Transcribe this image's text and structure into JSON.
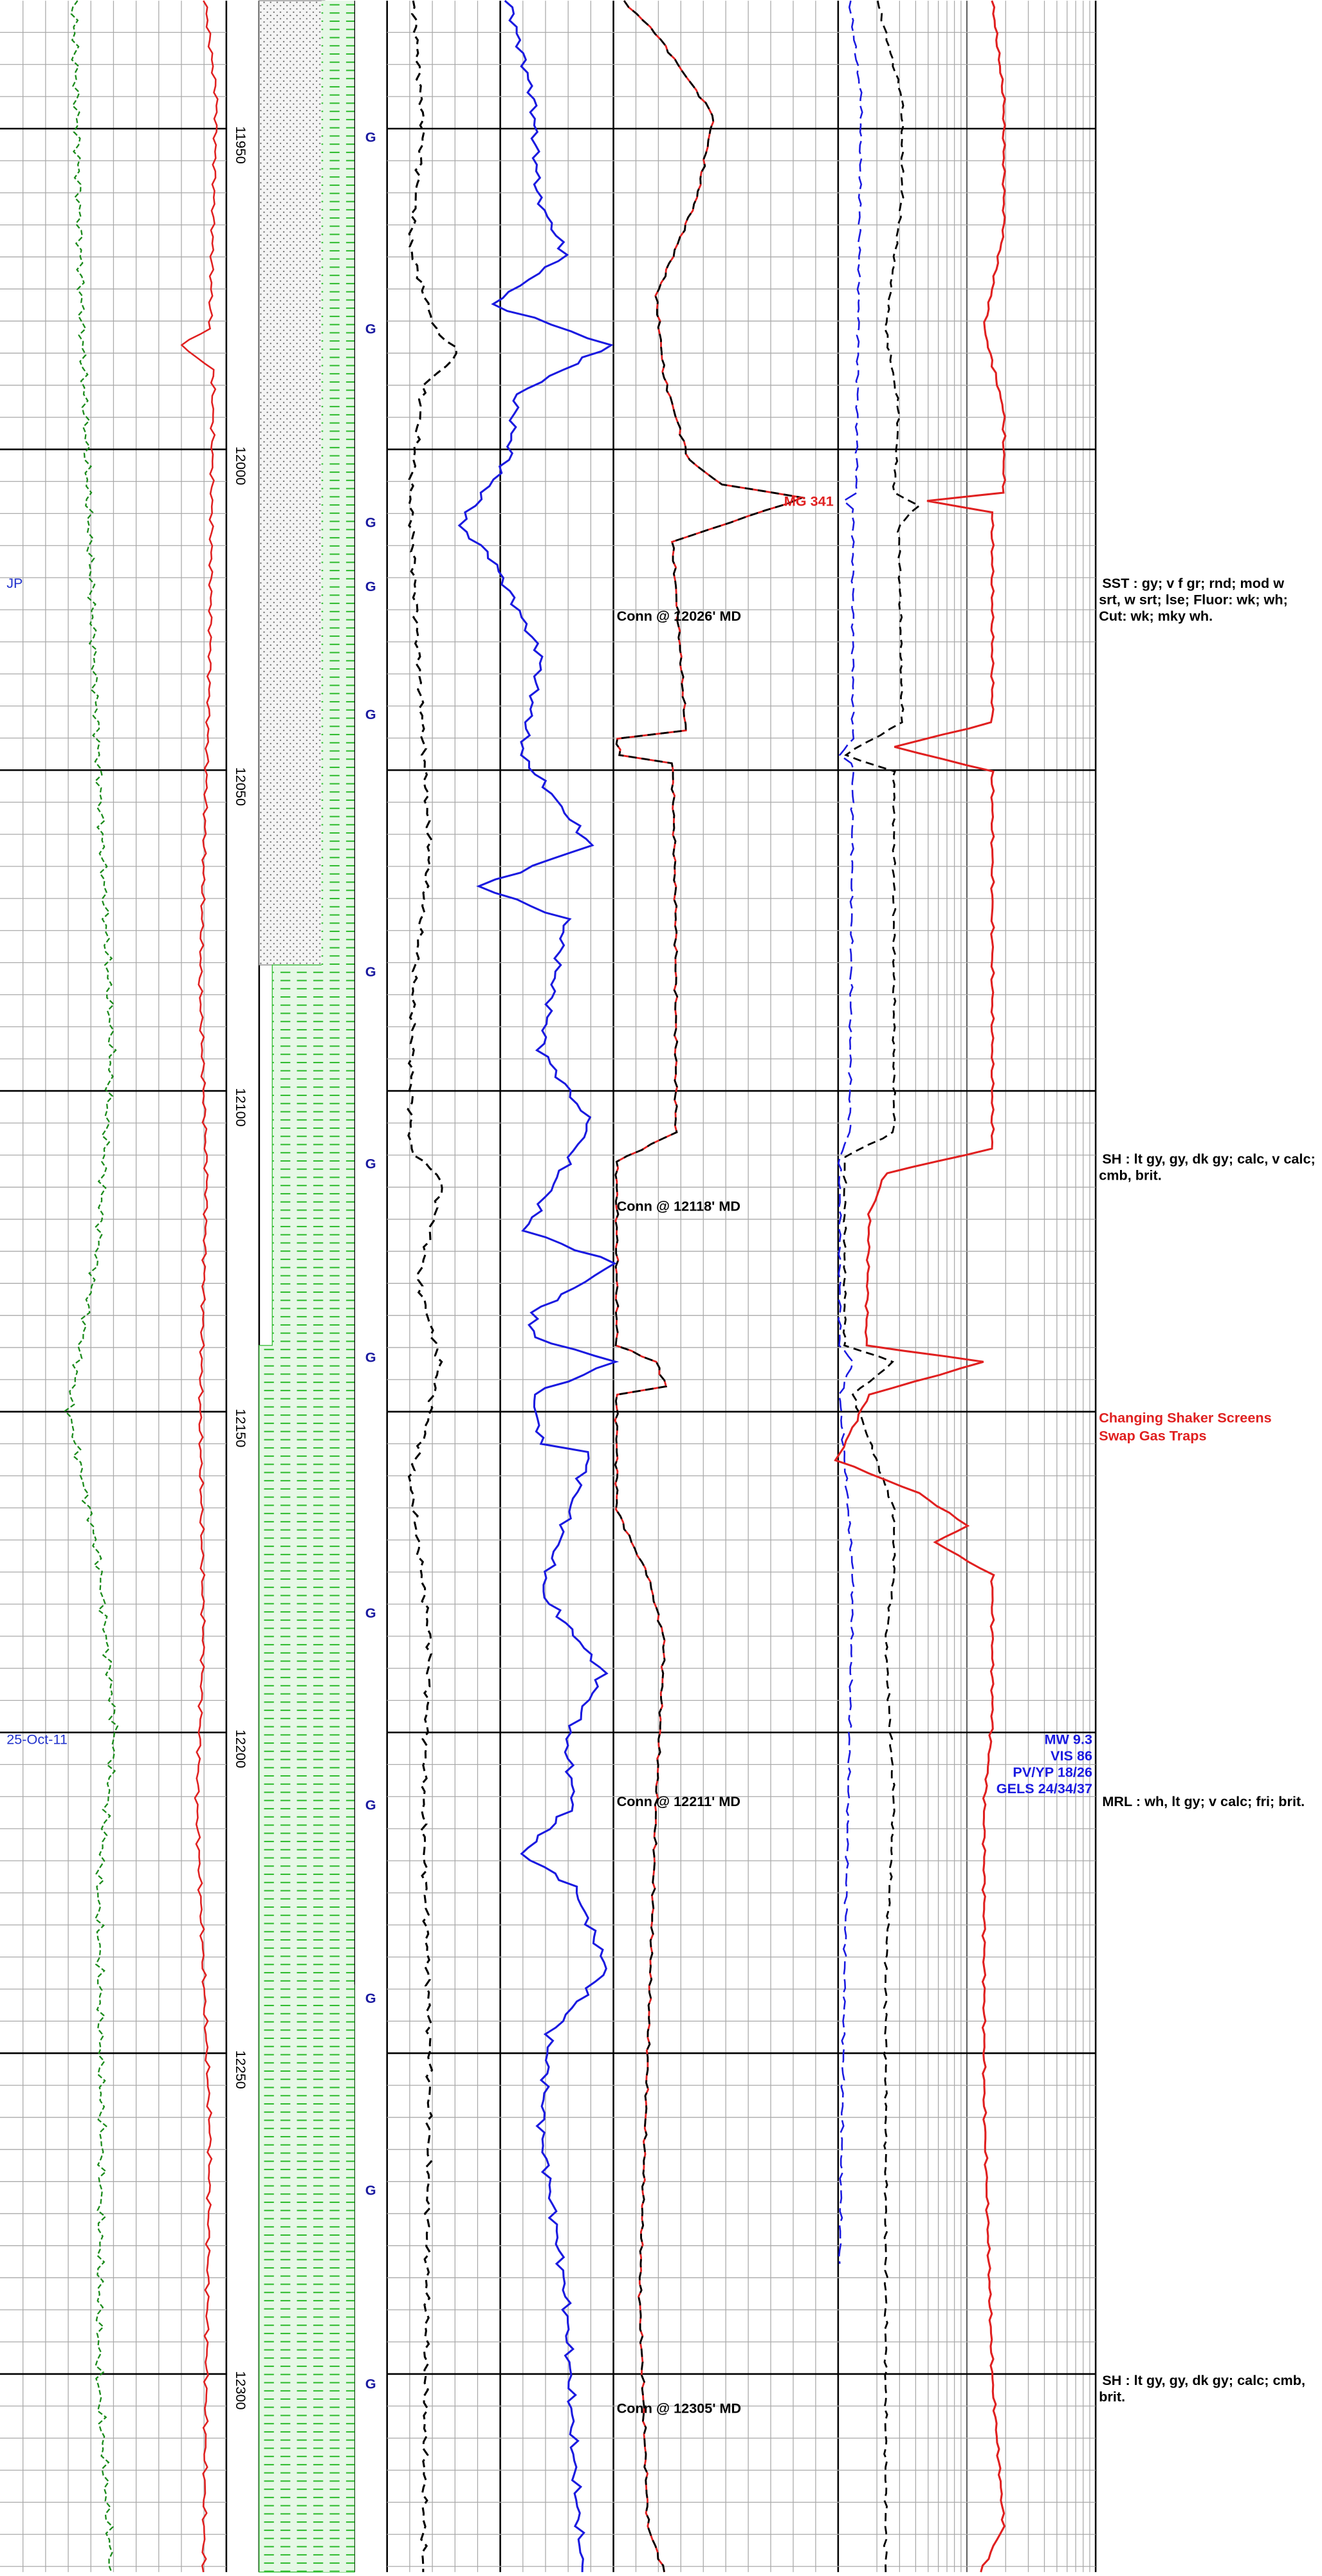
{
  "depth_track": {
    "depths": [
      11950,
      12000,
      12050,
      12100,
      12150,
      12200,
      12250,
      12300
    ]
  },
  "gas_marks": [
    "G",
    "G",
    "G",
    "G",
    "G",
    "G",
    "G",
    "G",
    "G",
    "G",
    "G",
    "G",
    "G"
  ],
  "annotations": {
    "initials": "JP",
    "date": "25-Oct-11",
    "max_gas": "MG 341",
    "connections": [
      "Conn @ 12026' MD",
      "Conn @ 12118' MD",
      "Conn @ 12211' MD",
      "Conn @ 12305' MD"
    ],
    "mud_properties": [
      "MW 9.3",
      "VIS 86",
      "PV/YP 18/26",
      "GELS 24/34/37"
    ],
    "remarks": [
      "Changing Shaker Screens",
      "Swap Gas Traps"
    ]
  },
  "lithology_descriptions": [
    [
      "SST : gy;  v f gr;  rnd;  mod w",
      "srt, w srt;  lse;  Fluor: wk;  wh;",
      "Cut: wk;  mky wh."
    ],
    [
      "SH : lt gy, gy, dk gy;  calc, v calc;",
      "cmb, brit."
    ],
    [
      "MRL : wh, lt gy;  v calc;  fri;  brit."
    ],
    [
      "SH : lt gy, gy, dk gy;  calc;  cmb,",
      "brit."
    ]
  ]
}
